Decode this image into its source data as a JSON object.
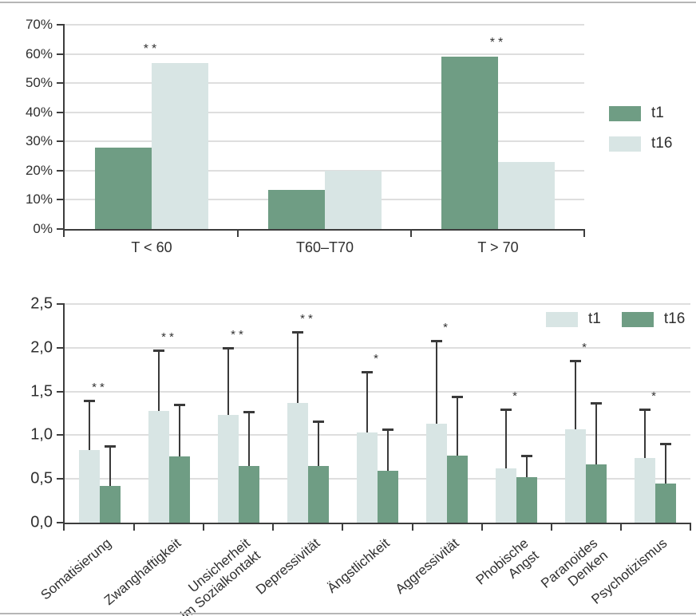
{
  "styles": {
    "series_green": "#6f9d84",
    "series_light": "#d8e5e4",
    "axis_color": "#3d3d3d",
    "grid_color": "#dedede",
    "text_color": "#2f2f2f",
    "border_rule_color": "#b6b6b6"
  },
  "chart_data": [
    {
      "type": "bar",
      "title": "",
      "xlabel": "",
      "ylabel": "",
      "categories": [
        "T < 60",
        "T60–T70",
        "T > 70"
      ],
      "series": [
        {
          "name": "t1",
          "color": "#6f9d84",
          "values": [
            28,
            13.4,
            59
          ]
        },
        {
          "name": "t16",
          "color": "#d8e5e4",
          "values": [
            57,
            20,
            23
          ]
        }
      ],
      "significance": [
        "**",
        "",
        "**"
      ],
      "y_axis": {
        "min": 0,
        "max": 70,
        "tick_values": [
          0,
          10,
          20,
          30,
          40,
          50,
          60,
          70
        ],
        "tick_labels": [
          "0%",
          "10%",
          "20%",
          "30%",
          "40%",
          "50%",
          "60%",
          "70%"
        ],
        "grid": true
      },
      "legend_position": "right-outside"
    },
    {
      "type": "bar",
      "title": "",
      "xlabel": "",
      "ylabel": "",
      "categories": [
        "Somatisierung",
        "Zwanghaftigkeit",
        "Unsicherheit\nim Sozialkontakt",
        "Depressivität",
        "Ängstlichkeit",
        "Aggressivität",
        "Phobische\nAngst",
        "Paranoides\nDenken",
        "Psychotizismus"
      ],
      "series": [
        {
          "name": "t1",
          "color": "#d8e5e4",
          "values": [
            0.83,
            1.28,
            1.23,
            1.37,
            1.03,
            1.13,
            0.62,
            1.07,
            0.74
          ],
          "error_tops": [
            1.4,
            1.97,
            2.0,
            2.18,
            1.72,
            2.08,
            1.3,
            1.85,
            1.3
          ]
        },
        {
          "name": "t16",
          "color": "#6f9d84",
          "values": [
            0.42,
            0.76,
            0.65,
            0.65,
            0.59,
            0.77,
            0.52,
            0.67,
            0.45
          ],
          "error_tops": [
            0.88,
            1.35,
            1.27,
            1.16,
            1.07,
            1.44,
            0.77,
            1.37,
            0.9
          ]
        }
      ],
      "significance": [
        "**",
        "**",
        "**",
        "**",
        "*",
        "*",
        "*",
        "*",
        "*"
      ],
      "y_axis": {
        "min": 0,
        "max": 2.5,
        "tick_values": [
          0,
          0.5,
          1.0,
          1.5,
          2.0,
          2.5
        ],
        "tick_labels": [
          "0,0",
          "0,5",
          "1,0",
          "1,5",
          "2,0",
          "2,5"
        ],
        "grid": true
      },
      "legend_position": "top-right-inside"
    }
  ]
}
